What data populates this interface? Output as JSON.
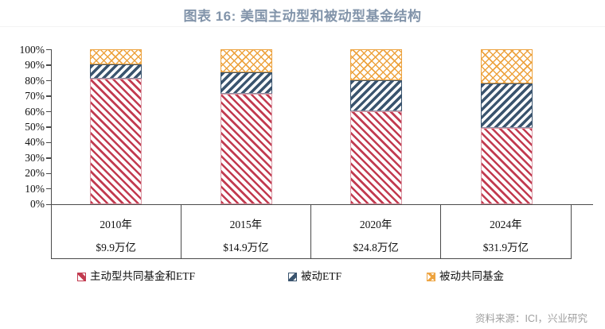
{
  "title": "图表 16: 美国主动型和被动型基金结构",
  "source_note": "资料来源：ICI，兴业研究",
  "colors": {
    "active_red": "#C23B50",
    "passive_etf_navy": "#3A546E",
    "passive_mf_orange": "#EDA33F",
    "title_slate": "#8294AA",
    "axis_line": "#4a4a4a",
    "source_gray": "#9e9e9e"
  },
  "chart_data": {
    "type": "bar",
    "stacked": true,
    "unit": "%",
    "categories": [
      "2010年",
      "2015年",
      "2020年",
      "2024年"
    ],
    "category_totals": [
      "$9.9万亿",
      "$14.9万亿",
      "$24.8万亿",
      "$31.9万亿"
    ],
    "series": [
      {
        "name": "主动型共同基金和ETF",
        "color": "#C23B50",
        "pattern": "diagonal-down",
        "values": [
          81,
          71,
          60,
          49
        ]
      },
      {
        "name": "被动ETF",
        "color": "#3A546E",
        "pattern": "diagonal-up",
        "values": [
          9,
          14,
          20,
          29
        ]
      },
      {
        "name": "被动共同基金",
        "color": "#EDA33F",
        "pattern": "crosshatch",
        "values": [
          10,
          15,
          20,
          22
        ]
      }
    ],
    "ylim": [
      0,
      100
    ],
    "y_ticks": [
      "0%",
      "10%",
      "20%",
      "30%",
      "40%",
      "50%",
      "60%",
      "70%",
      "80%",
      "90%",
      "100%"
    ],
    "grid": false,
    "legend_position": "bottom"
  }
}
